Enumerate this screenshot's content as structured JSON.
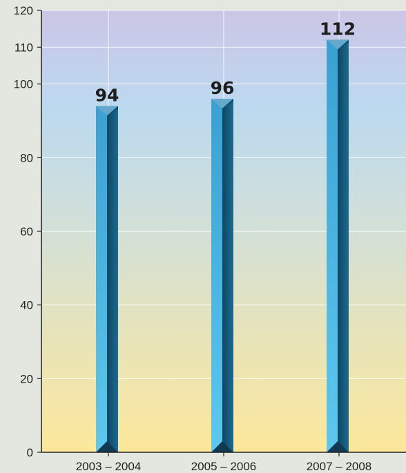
{
  "chart_data": {
    "type": "bar",
    "title": "",
    "xlabel": "",
    "ylabel": "",
    "categories": [
      "2003 – 2004",
      "2005 – 2006",
      "2007 – 2008"
    ],
    "values": [
      94,
      96,
      112
    ],
    "data_labels": [
      "94",
      "96",
      "112"
    ],
    "ylim": [
      0,
      120
    ],
    "yticks": [
      0,
      20,
      40,
      60,
      80,
      100,
      110,
      120
    ],
    "ytick_labels": [
      "0",
      "20",
      "40",
      "60",
      "80",
      "100",
      "110",
      "120"
    ],
    "grid": true,
    "legend": "none",
    "colors": {
      "bar_light": "#5ec8ee",
      "bar_mid": "#3aa0d2",
      "bar_dark": "#0b4766",
      "bg_top": "#cbc5e6",
      "bg_upper": "#bcd9ef",
      "bg_mid": "#d3e0d7",
      "bg_bottom": "#fde89a",
      "page_bg": "#e3e7df"
    }
  }
}
